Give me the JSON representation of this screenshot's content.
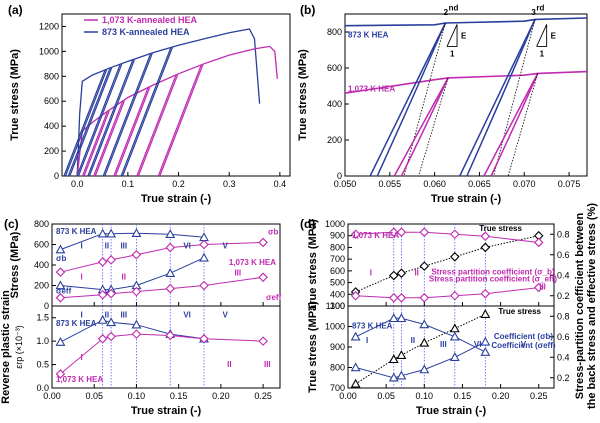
{
  "colors": {
    "blue": "#2a3f9d",
    "magenta": "#c02ab0",
    "dotted": "#000000"
  },
  "chart_data": [
    {
      "panel": "(a)",
      "type": "line",
      "xlabel": "True strain (-)",
      "ylabel": "True stress (MPa)",
      "xlim": [
        -0.03,
        0.42
      ],
      "ylim": [
        0,
        1300
      ],
      "xticks": [
        "0.0",
        "0.1",
        "0.2",
        "0.3",
        "0.4"
      ],
      "yticks": [
        "0",
        "200",
        "400",
        "600",
        "800",
        "1000",
        "1200"
      ],
      "legend": [
        "1,073 K-annealed HEA",
        "873 K-annealed HEA"
      ],
      "series": [
        {
          "name": "873 K-annealed HEA",
          "color": "blue",
          "x": [
            0.0,
            0.005,
            0.01,
            0.03,
            0.06,
            0.1,
            0.15,
            0.2,
            0.25,
            0.3,
            0.34,
            0.35,
            0.36
          ],
          "y": [
            0,
            500,
            760,
            810,
            860,
            920,
            990,
            1050,
            1100,
            1150,
            1180,
            1100,
            580
          ]
        },
        {
          "name": "1,073 K-annealed HEA",
          "color": "magenta",
          "x": [
            0.0,
            0.01,
            0.03,
            0.06,
            0.1,
            0.15,
            0.2,
            0.25,
            0.3,
            0.35,
            0.38,
            0.39,
            0.395
          ],
          "y": [
            0,
            360,
            430,
            520,
            630,
            730,
            820,
            900,
            970,
            1020,
            1040,
            1000,
            780
          ]
        }
      ],
      "unloading_strains": {
        "873 K-annealed HEA": [
          0.055,
          0.065,
          0.085,
          0.11,
          0.145,
          0.185
        ],
        "1,073 K-annealed HEA": [
          0.06,
          0.09,
          0.14,
          0.195,
          0.245
        ]
      }
    },
    {
      "panel": "(b)",
      "type": "line",
      "xlabel": "True strain (-)",
      "ylabel": "True stress (MPa)",
      "xlim": [
        0.05,
        0.077
      ],
      "ylim": [
        0,
        900
      ],
      "xticks": [
        "0.050",
        "0.055",
        "0.060",
        "0.065",
        "0.070",
        "0.075"
      ],
      "yticks": [
        "0",
        "200",
        "400",
        "600",
        "800"
      ],
      "labels": [
        "873 K HEA",
        "1,073 K HEA",
        "2",
        "nd",
        "3",
        "rd",
        "E",
        "1",
        "E",
        "1"
      ],
      "series": [
        {
          "name": "873 K HEA",
          "color": "blue",
          "x": [
            0.05,
            0.06,
            0.0612,
            0.07,
            0.0712,
            0.077
          ],
          "y": [
            835,
            840,
            850,
            860,
            870,
            878
          ]
        },
        {
          "name": "1,073 K HEA",
          "color": "magenta",
          "x": [
            0.05,
            0.06,
            0.0615,
            0.07,
            0.0715,
            0.077
          ],
          "y": [
            460,
            535,
            545,
            560,
            570,
            580
          ]
        }
      ],
      "loops": [
        {
          "color": "blue",
          "top": [
            0.0612,
            850
          ],
          "foot": [
            0.0528,
            0
          ]
        },
        {
          "color": "blue",
          "top": [
            0.0712,
            870
          ],
          "foot": [
            0.0628,
            0
          ]
        },
        {
          "color": "magenta",
          "top": [
            0.0615,
            545
          ],
          "foot": [
            0.0555,
            0
          ]
        },
        {
          "color": "magenta",
          "top": [
            0.0715,
            570
          ],
          "foot": [
            0.0655,
            0
          ]
        }
      ]
    },
    {
      "panel": "(c)",
      "type": "line",
      "xlabel": "True strain (-)",
      "top": {
        "ylabel": "Stress (MPa)",
        "ylim": [
          0,
          800
        ],
        "yticks": [
          "0",
          "200",
          "400",
          "600",
          "800"
        ],
        "labels": [
          "873 K HEA",
          "1,073 K HEA",
          "σb",
          "σeff",
          "σb",
          "σeff",
          "I",
          "II",
          "III",
          "VI",
          "V",
          "I",
          "II",
          "III"
        ],
        "series": [
          {
            "name": "873 K σb",
            "color": "blue",
            "marker": "triangle",
            "x": [
              0.01,
              0.06,
              0.07,
              0.1,
              0.14,
              0.18
            ],
            "y": [
              550,
              705,
              705,
              710,
              700,
              670
            ]
          },
          {
            "name": "873 K σeff",
            "color": "blue",
            "marker": "triangle",
            "x": [
              0.01,
              0.06,
              0.07,
              0.1,
              0.14,
              0.18
            ],
            "y": [
              200,
              160,
              160,
              200,
              320,
              470
            ]
          },
          {
            "name": "1,073 K σb",
            "color": "magenta",
            "marker": "diamond",
            "x": [
              0.01,
              0.06,
              0.07,
              0.1,
              0.14,
              0.18,
              0.25
            ],
            "y": [
              330,
              430,
              450,
              500,
              570,
              600,
              620
            ]
          },
          {
            "name": "1,073 K σeff",
            "color": "magenta",
            "marker": "diamond",
            "x": [
              0.01,
              0.06,
              0.07,
              0.1,
              0.14,
              0.18,
              0.25
            ],
            "y": [
              80,
              110,
              120,
              140,
              170,
              200,
              280
            ]
          }
        ]
      },
      "bottom": {
        "ylabel": "Reverse plastic strain",
        "ylabel2": "εrp (×10⁻³)",
        "ylim": [
          0.0,
          1.75
        ],
        "yticks": [
          "0.0",
          "0.5",
          "1.0",
          "1.5"
        ],
        "labels": [
          "873 K HEA",
          "1,073 K HEA",
          "I",
          "II",
          "III",
          "VI",
          "V",
          "I",
          "II",
          "III"
        ],
        "series": [
          {
            "name": "873 K",
            "color": "blue",
            "marker": "triangle",
            "x": [
              0.01,
              0.06,
              0.07,
              0.1,
              0.14,
              0.18
            ],
            "y": [
              0.98,
              1.45,
              1.4,
              1.35,
              1.15,
              1.05
            ]
          },
          {
            "name": "1,073 K",
            "color": "magenta",
            "marker": "diamond",
            "x": [
              0.01,
              0.06,
              0.07,
              0.1,
              0.14,
              0.18,
              0.25
            ],
            "y": [
              0.3,
              1.05,
              1.1,
              1.15,
              1.12,
              1.05,
              1.0
            ]
          }
        ]
      },
      "xlim": [
        0.0,
        0.27
      ],
      "xticks": [
        "0.00",
        "0.05",
        "0.10",
        "0.15",
        "0.20",
        "0.25"
      ],
      "vlines": [
        0.06,
        0.07,
        0.1,
        0.14,
        0.18
      ]
    },
    {
      "panel": "(d)",
      "type": "line",
      "xlabel": "True strain (-)",
      "ylabel_right": "Stress-partition coefficient between the back stress and effective stress (%)",
      "xlim": [
        0.0,
        0.27
      ],
      "xticks": [
        "0.00",
        "0.05",
        "0.10",
        "0.15",
        "0.20",
        "0.25"
      ],
      "top": {
        "ylabel": "True stress (MPa)",
        "ylim": [
          300,
          1000
        ],
        "yticks": [
          "300",
          "400",
          "500",
          "600",
          "700",
          "800",
          "900",
          "1000"
        ],
        "y2ticks": [
          "0.2",
          "0.4",
          "0.6",
          "0.8"
        ],
        "labels": [
          "1,073 K HEA",
          "I",
          "II",
          "III",
          "True stress",
          "Stress partition coefficient (σ_b)",
          "Stress partition coefficient (σ_eff)"
        ],
        "series": [
          {
            "name": "True stress",
            "color": "black",
            "marker": "diamond-open",
            "x": [
              0.01,
              0.06,
              0.07,
              0.1,
              0.14,
              0.18,
              0.25
            ],
            "y": [
              420,
              560,
              580,
              640,
              720,
              800,
              900
            ]
          },
          {
            "name": "Coefficient (σb)",
            "color": "magenta",
            "marker": "diamond",
            "x": [
              0.01,
              0.06,
              0.07,
              0.1,
              0.14,
              0.18,
              0.25
            ],
            "y2": [
              0.8,
              0.82,
              0.82,
              0.82,
              0.8,
              0.78,
              0.72
            ]
          },
          {
            "name": "Coefficient (σeff)",
            "color": "magenta",
            "marker": "diamond",
            "x": [
              0.01,
              0.06,
              0.07,
              0.1,
              0.14,
              0.18,
              0.25
            ],
            "y2": [
              0.2,
              0.18,
              0.18,
              0.18,
              0.2,
              0.22,
              0.28
            ]
          }
        ]
      },
      "bottom": {
        "ylabel": "True stress (MPa)",
        "ylim": [
          700,
          1100
        ],
        "yticks": [
          "700",
          "800",
          "900",
          "1000",
          "1100"
        ],
        "y2ticks": [
          "0.2",
          "0.4",
          "0.6",
          "0.8"
        ],
        "labels": [
          "873 K HEA",
          "I",
          "II",
          "III",
          "VI",
          "V",
          "True stress",
          "Coefficient (σb)",
          "Coefficient (σeff)"
        ],
        "series": [
          {
            "name": "True stress",
            "color": "black",
            "marker": "triangle-open",
            "x": [
              0.01,
              0.06,
              0.07,
              0.1,
              0.14,
              0.18
            ],
            "y": [
              720,
              840,
              860,
              920,
              990,
              1060
            ]
          },
          {
            "name": "Coefficient (σb)",
            "color": "blue",
            "marker": "triangle",
            "x": [
              0.01,
              0.06,
              0.07,
              0.1,
              0.14,
              0.18
            ],
            "y2": [
              0.6,
              0.78,
              0.78,
              0.72,
              0.6,
              0.45
            ]
          },
          {
            "name": "Coefficient (σeff)",
            "color": "blue",
            "marker": "triangle",
            "x": [
              0.01,
              0.06,
              0.07,
              0.1,
              0.14,
              0.18
            ],
            "y2": [
              0.3,
              0.2,
              0.22,
              0.28,
              0.4,
              0.55
            ]
          }
        ]
      },
      "vlines": [
        0.06,
        0.07,
        0.1,
        0.14,
        0.18
      ]
    }
  ]
}
